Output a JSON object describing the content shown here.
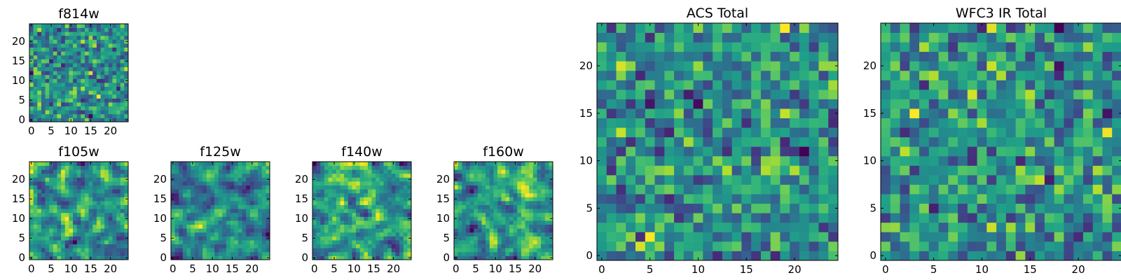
{
  "colormap": "viridis",
  "chart_data": [
    {
      "type": "heatmap",
      "title": "f814w",
      "x_ticks": [
        "0",
        "5",
        "10",
        "15",
        "20"
      ],
      "y_ticks": [
        "0",
        "5",
        "10",
        "15",
        "20"
      ],
      "grid_size": 25,
      "xlim": [
        -0.5,
        24.5
      ],
      "ylim": [
        -0.5,
        24.5
      ],
      "pixel_values": "random noise, normalized 0-1",
      "seed": 11
    },
    {
      "type": "heatmap",
      "title": "f105w",
      "x_ticks": [
        "0",
        "5",
        "10",
        "15",
        "20"
      ],
      "y_ticks": [
        "0",
        "5",
        "10",
        "15",
        "20"
      ],
      "grid_size": 25,
      "xlim": [
        -0.5,
        24.5
      ],
      "ylim": [
        -0.5,
        24.5
      ],
      "pixel_values": "smoothed noise, normalized 0-1",
      "seed": 23
    },
    {
      "type": "heatmap",
      "title": "f125w",
      "x_ticks": [
        "0",
        "5",
        "10",
        "15",
        "20"
      ],
      "y_ticks": [
        "0",
        "5",
        "10",
        "15",
        "20"
      ],
      "grid_size": 25,
      "xlim": [
        -0.5,
        24.5
      ],
      "ylim": [
        -0.5,
        24.5
      ],
      "pixel_values": "smoothed noise, normalized 0-1",
      "seed": 37
    },
    {
      "type": "heatmap",
      "title": "f140w",
      "x_ticks": [
        "0",
        "5",
        "10",
        "15",
        "20"
      ],
      "y_ticks": [
        "0",
        "5",
        "10",
        "15",
        "20"
      ],
      "grid_size": 25,
      "xlim": [
        -0.5,
        24.5
      ],
      "ylim": [
        -0.5,
        24.5
      ],
      "pixel_values": "smoothed noise, normalized 0-1",
      "seed": 41
    },
    {
      "type": "heatmap",
      "title": "f160w",
      "x_ticks": [
        "0",
        "5",
        "10",
        "15",
        "20"
      ],
      "y_ticks": [
        "0",
        "5",
        "10",
        "15",
        "20"
      ],
      "grid_size": 25,
      "xlim": [
        -0.5,
        24.5
      ],
      "ylim": [
        -0.5,
        24.5
      ],
      "pixel_values": "smoothed noise, normalized 0-1",
      "seed": 53
    },
    {
      "type": "heatmap",
      "title": "ACS Total",
      "x_ticks": [
        "0",
        "5",
        "10",
        "15",
        "20"
      ],
      "y_ticks": [
        "0",
        "5",
        "10",
        "15",
        "20"
      ],
      "grid_size": 25,
      "xlim": [
        -0.5,
        24.5
      ],
      "ylim": [
        -0.5,
        24.5
      ],
      "pixel_values": "random noise, normalized 0-1",
      "seed": 67
    },
    {
      "type": "heatmap",
      "title": "WFC3 IR Total",
      "x_ticks": [
        "0",
        "5",
        "10",
        "15",
        "20"
      ],
      "y_ticks": [
        "0",
        "5",
        "10",
        "15",
        "20"
      ],
      "grid_size": 25,
      "xlim": [
        -0.5,
        24.5
      ],
      "ylim": [
        -0.5,
        24.5
      ],
      "pixel_values": "random noise, normalized 0-1",
      "seed": 79
    }
  ]
}
